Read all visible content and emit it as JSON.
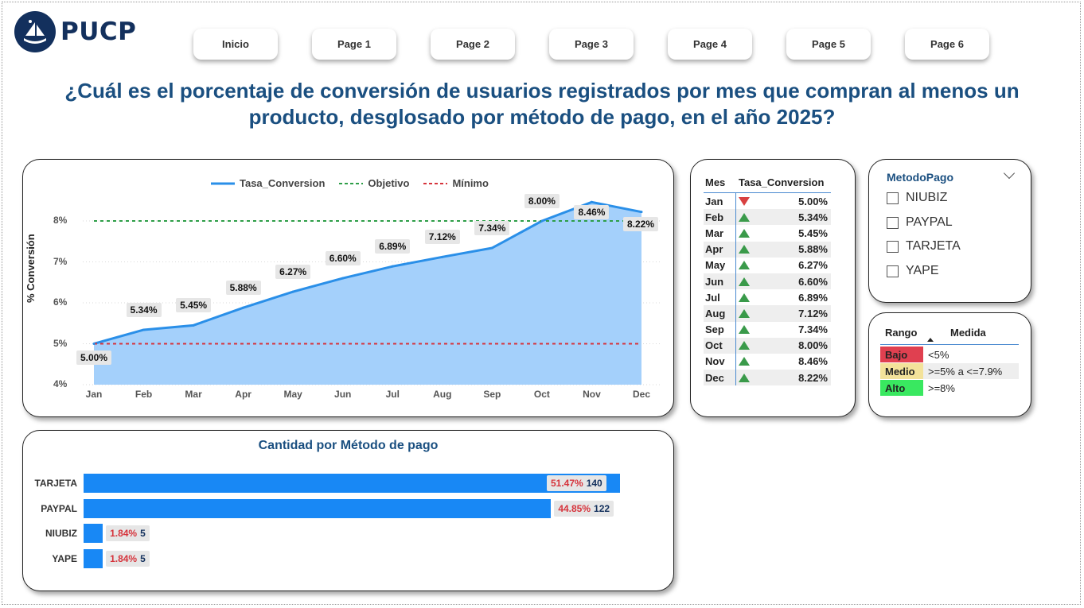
{
  "logo": {
    "text": "PUCP"
  },
  "nav": {
    "buttons": [
      "Inicio",
      "Page 1",
      "Page 2",
      "Page 3",
      "Page 4",
      "Page 5",
      "Page 6"
    ]
  },
  "title": "¿Cuál es el porcentaje de conversión de usuarios registrados por mes que compran al menos un producto, desglosado por método de pago, en el año 2025?",
  "colors": {
    "primary": "#1888f5",
    "area": "#a4d0fb",
    "line": "#2a8fe8",
    "objetivo": "#2e9e48",
    "minimo": "#d6343c",
    "title": "#1a4f80",
    "bajo": "#e04050",
    "medio": "#f3e29a",
    "alto": "#39e860"
  },
  "line_chart": {
    "legend": [
      "Tasa_Conversion",
      "Objetivo",
      "Mínimo"
    ],
    "ylabel": "% Conversión",
    "yticks": [
      "8%",
      "7%",
      "6%",
      "5%",
      "4%"
    ],
    "data_labels": [
      "5.00%",
      "5.34%",
      "5.45%",
      "5.88%",
      "6.27%",
      "6.60%",
      "6.89%",
      "7.12%",
      "7.34%",
      "8.00%",
      "8.46%",
      "8.22%"
    ]
  },
  "table": {
    "headers": [
      "Mes",
      "Tasa_Conversion"
    ],
    "rows": [
      {
        "mes": "Jan",
        "trend": "down",
        "val": "5.00%"
      },
      {
        "mes": "Feb",
        "trend": "up",
        "val": "5.34%"
      },
      {
        "mes": "Mar",
        "trend": "up",
        "val": "5.45%"
      },
      {
        "mes": "Apr",
        "trend": "up",
        "val": "5.88%"
      },
      {
        "mes": "May",
        "trend": "up",
        "val": "6.27%"
      },
      {
        "mes": "Jun",
        "trend": "up",
        "val": "6.60%"
      },
      {
        "mes": "Jul",
        "trend": "up",
        "val": "6.89%"
      },
      {
        "mes": "Aug",
        "trend": "up",
        "val": "7.12%"
      },
      {
        "mes": "Sep",
        "trend": "up",
        "val": "7.34%"
      },
      {
        "mes": "Oct",
        "trend": "up",
        "val": "8.00%"
      },
      {
        "mes": "Nov",
        "trend": "up",
        "val": "8.46%"
      },
      {
        "mes": "Dec",
        "trend": "up",
        "val": "8.22%"
      }
    ]
  },
  "slicer": {
    "title": "MetodoPago",
    "options": [
      "NIUBIZ",
      "PAYPAL",
      "TARJETA",
      "YAPE"
    ]
  },
  "ranges": {
    "headers": [
      "Rango",
      "Medida"
    ],
    "rows": [
      {
        "label": "Bajo",
        "value": "<5%",
        "color": "#e04050"
      },
      {
        "label": "Medio",
        "value": ">=5% a <=7.9%",
        "color": "#f3e29a"
      },
      {
        "label": "Alto",
        "value": ">=8%",
        "color": "#39e860"
      }
    ]
  },
  "bar_chart": {
    "title": "Cantidad por Método de pago",
    "pct_labels": [
      "51.47%",
      "44.85%",
      "1.84%",
      "1.84%"
    ],
    "count_labels": [
      "140",
      "122",
      "5",
      "5"
    ]
  },
  "chart_data": [
    {
      "type": "area",
      "x": [
        "Jan",
        "Feb",
        "Mar",
        "Apr",
        "May",
        "Jun",
        "Jul",
        "Aug",
        "Sep",
        "Oct",
        "Nov",
        "Dec"
      ],
      "series": [
        {
          "name": "Tasa_Conversion",
          "values": [
            5.0,
            5.34,
            5.45,
            5.88,
            6.27,
            6.6,
            6.89,
            7.12,
            7.34,
            8.0,
            8.46,
            8.22
          ]
        },
        {
          "name": "Objetivo",
          "values": [
            8,
            8,
            8,
            8,
            8,
            8,
            8,
            8,
            8,
            8,
            8,
            8
          ]
        },
        {
          "name": "Mínimo",
          "values": [
            5,
            5,
            5,
            5,
            5,
            5,
            5,
            5,
            5,
            5,
            5,
            5
          ]
        }
      ],
      "ylabel": "% Conversión",
      "ylim": [
        4,
        8.5
      ],
      "legend": "top"
    },
    {
      "type": "bar",
      "title": "Cantidad por Método de pago",
      "categories": [
        "TARJETA",
        "PAYPAL",
        "NIUBIZ",
        "YAPE"
      ],
      "values": [
        140,
        122,
        5,
        5
      ],
      "percentages": [
        51.47,
        44.85,
        1.84,
        1.84
      ]
    }
  ]
}
